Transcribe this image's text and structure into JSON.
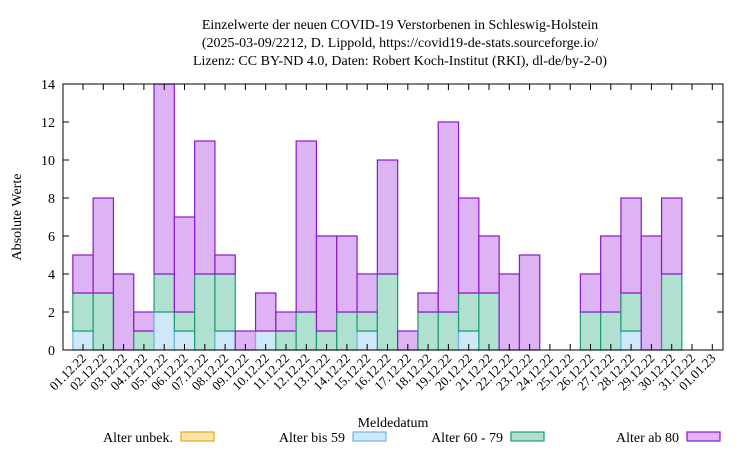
{
  "chart_data": {
    "type": "bar",
    "stacked": true,
    "title_lines": [
      "Einzelwerte der neuen COVID-19 Verstorbenen in Schleswig-Holstein",
      "(2025-03-09/2212, D. Lippold, https://covid19-de-stats.sourceforge.io/",
      "Lizenz: CC BY-ND 4.0, Daten: Robert Koch-Institut (RKI), dl-de/by-2-0)"
    ],
    "xlabel": "Meldedatum",
    "ylabel": "Absolute Werte",
    "ylim": [
      0,
      14
    ],
    "yticks": [
      0,
      2,
      4,
      6,
      8,
      10,
      12,
      14
    ],
    "grid": false,
    "legend_position": "bottom",
    "categories": [
      "01.12.22",
      "02.12.22",
      "03.12.22",
      "04.12.22",
      "05.12.22",
      "06.12.22",
      "07.12.22",
      "08.12.22",
      "09.12.22",
      "10.12.22",
      "11.12.22",
      "12.12.22",
      "13.12.22",
      "14.12.22",
      "15.12.22",
      "16.12.22",
      "17.12.22",
      "18.12.22",
      "19.12.22",
      "20.12.22",
      "21.12.22",
      "22.12.22",
      "23.12.22",
      "24.12.22",
      "25.12.22",
      "26.12.22",
      "27.12.22",
      "28.12.22",
      "29.12.22",
      "30.12.22",
      "31.12.22",
      "01.01.23"
    ],
    "series": [
      {
        "name": "Alter unbek.",
        "color": "#fde7a8",
        "stroke": "#e6a817",
        "values": [
          0,
          0,
          0,
          0,
          0,
          0,
          0,
          0,
          0,
          0,
          0,
          0,
          0,
          0,
          0,
          0,
          0,
          0,
          0,
          0,
          0,
          0,
          0,
          0,
          0,
          0,
          0,
          0,
          0,
          0,
          0,
          0
        ]
      },
      {
        "name": "Alter bis 59",
        "color": "#cfe8f7",
        "stroke": "#6cb6e3",
        "values": [
          1,
          0,
          0,
          0,
          2,
          1,
          0,
          1,
          0,
          1,
          0,
          0,
          0,
          0,
          1,
          0,
          0,
          0,
          0,
          1,
          0,
          0,
          0,
          0,
          0,
          0,
          0,
          1,
          0,
          0,
          0,
          0
        ]
      },
      {
        "name": "Alter 60 - 79",
        "color": "#b0e0cf",
        "stroke": "#1a9b72",
        "values": [
          2,
          3,
          0,
          1,
          2,
          1,
          4,
          3,
          0,
          0,
          1,
          2,
          1,
          2,
          1,
          4,
          0,
          2,
          2,
          2,
          3,
          0,
          0,
          0,
          0,
          2,
          2,
          2,
          0,
          4,
          0,
          0
        ]
      },
      {
        "name": "Alter ab 80",
        "color": "#deb3f3",
        "stroke": "#8c17c9",
        "values": [
          2,
          5,
          4,
          1,
          10,
          5,
          7,
          1,
          1,
          2,
          1,
          9,
          5,
          4,
          2,
          6,
          1,
          1,
          10,
          5,
          3,
          4,
          5,
          0,
          0,
          2,
          4,
          5,
          6,
          4,
          0,
          0
        ]
      }
    ]
  }
}
